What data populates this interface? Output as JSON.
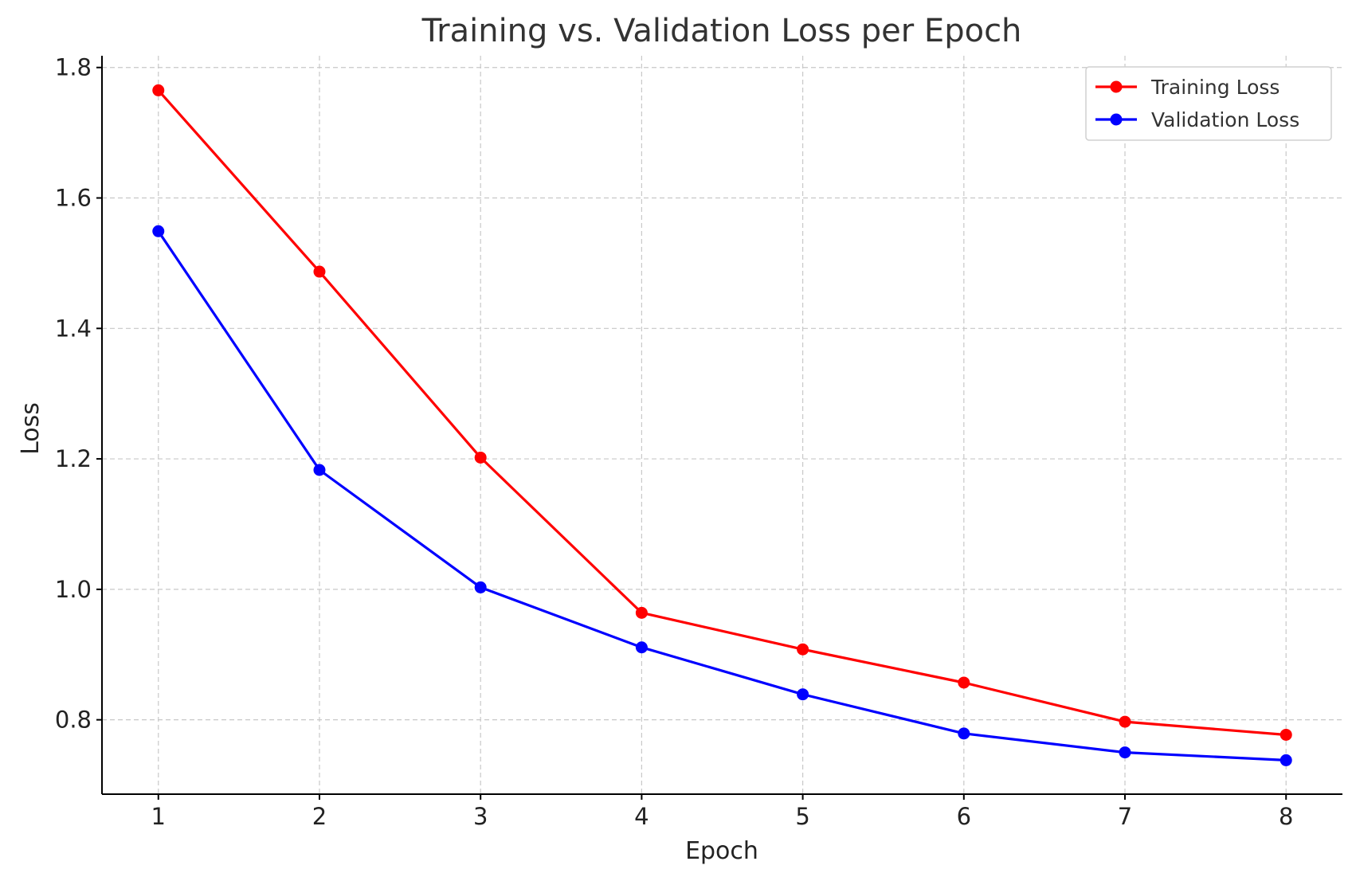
{
  "chart_data": {
    "type": "line",
    "title": "Training vs. Validation Loss per Epoch",
    "xlabel": "Epoch",
    "ylabel": "Loss",
    "x": [
      1,
      2,
      3,
      4,
      5,
      6,
      7,
      8
    ],
    "x_ticks": [
      "1",
      "2",
      "3",
      "4",
      "5",
      "6",
      "7",
      "8"
    ],
    "xlim": [
      0.65,
      8.35
    ],
    "ylim": [
      0.686,
      1.818
    ],
    "y_ticks": [
      0.8,
      1.0,
      1.2,
      1.4,
      1.6,
      1.8
    ],
    "y_tick_labels": [
      "0.8",
      "1.0",
      "1.2",
      "1.4",
      "1.6",
      "1.8"
    ],
    "grid": true,
    "legend_position": "top-right",
    "series": [
      {
        "name": "Training Loss",
        "color": "#ff0000",
        "values": [
          1.765,
          1.487,
          1.202,
          0.964,
          0.908,
          0.857,
          0.797,
          0.777
        ]
      },
      {
        "name": "Validation Loss",
        "color": "#0000ff",
        "values": [
          1.549,
          1.183,
          1.003,
          0.911,
          0.839,
          0.779,
          0.75,
          0.738
        ]
      }
    ]
  }
}
